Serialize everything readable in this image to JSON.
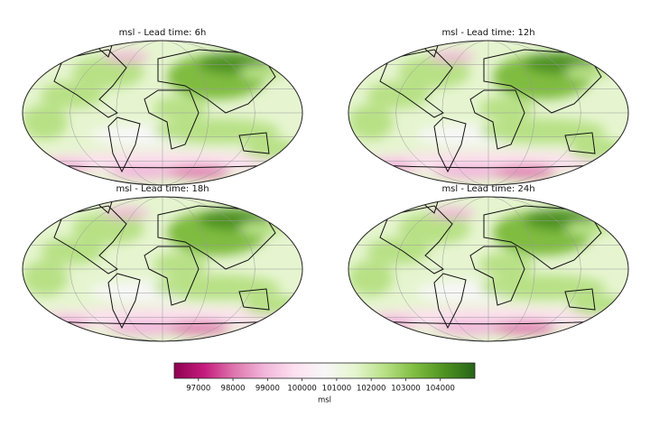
{
  "panels": [
    {
      "title": "msl - Lead time: 6h"
    },
    {
      "title": "msl - Lead time: 12h"
    },
    {
      "title": "msl - Lead time: 18h"
    },
    {
      "title": "msl - Lead time: 24h"
    }
  ],
  "colorbar": {
    "label": "msl",
    "lim": [
      96300,
      105000
    ],
    "ticks": [
      97000,
      98000,
      99000,
      100000,
      101000,
      102000,
      103000,
      104000
    ],
    "colors": [
      "#8e0152",
      "#c51b7d",
      "#de77ae",
      "#f1b6da",
      "#fde0ef",
      "#f7f7f7",
      "#e6f5d0",
      "#b8e186",
      "#7fbc41",
      "#4d9221",
      "#276419"
    ]
  }
}
